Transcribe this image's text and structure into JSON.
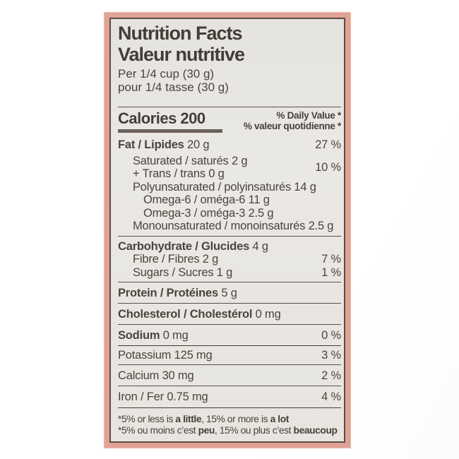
{
  "label": {
    "title_en": "Nutrition Facts",
    "title_fr": "Valeur nutritive",
    "serving_en": "Per 1/4 cup (30 g)",
    "serving_fr": "pour 1/4 tasse (30 g)",
    "calories": "Calories 200",
    "dv_header_en": "% Daily Value *",
    "dv_header_fr": "% valeur quotidienne *",
    "rows": [
      {
        "bold": "Fat / Lipides",
        "rest": " 20 g",
        "dv": "27 %"
      },
      {
        "bold": "",
        "rest": "Saturated / saturés 2 g",
        "dv": "10 %"
      },
      {
        "bold": "",
        "rest": "+ Trans / trans 0 g",
        "dv": ""
      },
      {
        "bold": "",
        "rest": "Polyunsaturated / polyinsaturés 14 g",
        "dv": ""
      },
      {
        "bold": "",
        "rest": "Omega-6 / oméga-6 11 g",
        "dv": ""
      },
      {
        "bold": "",
        "rest": "Omega-3 / oméga-3 2.5 g",
        "dv": ""
      },
      {
        "bold": "",
        "rest": "Monounsaturated / monoinsaturés 2.5 g",
        "dv": ""
      },
      {
        "bold": "Carbohydrate / Glucides",
        "rest": " 4 g",
        "dv": ""
      },
      {
        "bold": "",
        "rest": "Fibre / Fibres 2 g",
        "dv": "7 %"
      },
      {
        "bold": "",
        "rest": "Sugars / Sucres 1 g",
        "dv": "1 %"
      },
      {
        "bold": "Protein / Protéines",
        "rest": " 5 g",
        "dv": ""
      },
      {
        "bold": "Cholesterol / Cholestérol",
        "rest": " 0 mg",
        "dv": ""
      },
      {
        "bold": "Sodium",
        "rest": " 0 mg",
        "dv": "0 %"
      },
      {
        "bold": "",
        "rest": "Potassium 125 mg",
        "dv": "3 %"
      },
      {
        "bold": "",
        "rest": "Calcium 30 mg",
        "dv": "2 %"
      },
      {
        "bold": "",
        "rest": "Iron / Fer 0.75 mg",
        "dv": "4 %"
      }
    ],
    "footnote_en": {
      "pre": "*5% or less is ",
      "bold1": "a little",
      "mid": ", 15% or more is ",
      "bold2": "a lot"
    },
    "footnote_fr": {
      "pre": "*5% ou moins c’est ",
      "bold1": "peu",
      "mid": ", 15% ou plus c’est ",
      "bold2": "beaucoup"
    }
  },
  "colors": {
    "frame_pink": "#e0a294",
    "border_dark": "#5a4d44",
    "paper": "#e8e5e0",
    "ink": "#4a443e"
  }
}
